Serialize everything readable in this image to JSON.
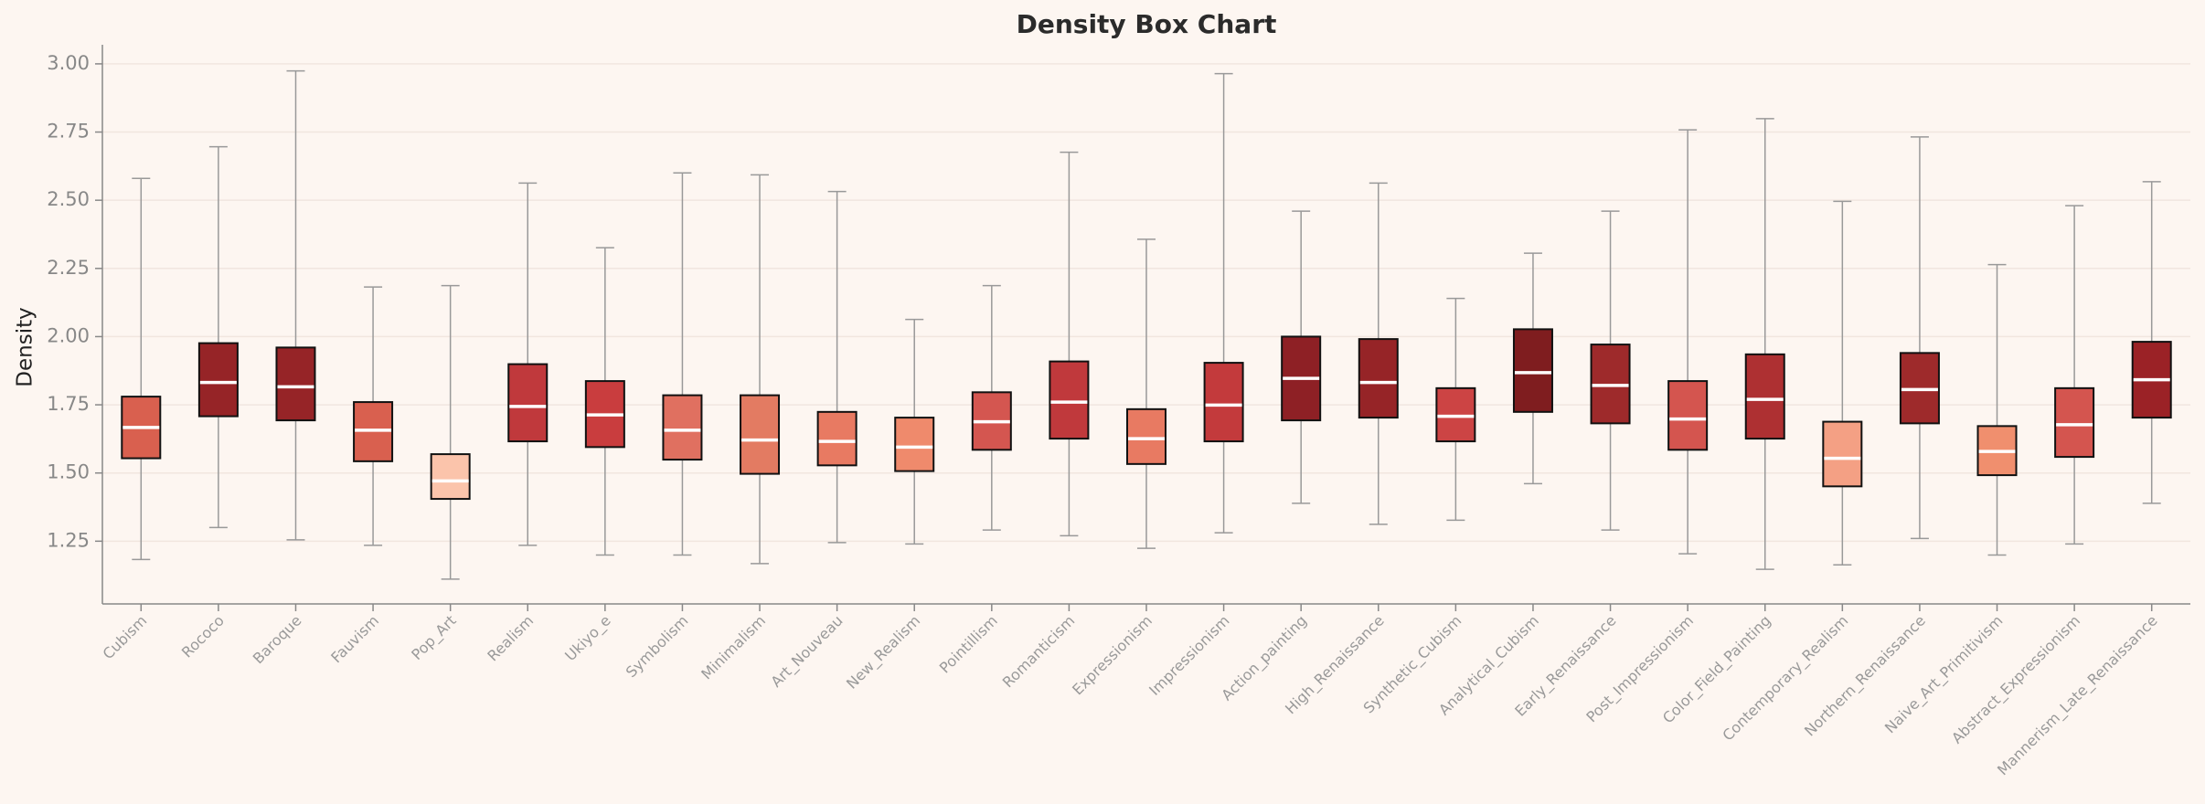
{
  "chart_data": {
    "type": "box",
    "title": "Density Box Chart",
    "y_label": "Density",
    "categories": [
      "Cubism",
      "Rococo",
      "Baroque",
      "Fauvism",
      "Pop_Art",
      "Realism",
      "Ukiyo_e",
      "Symbolism",
      "Minimalism",
      "Art_Nouveau",
      "New_Realism",
      "Pointillism",
      "Romanticism",
      "Expressionism",
      "Impressionism",
      "Action_painting",
      "High_Renaissance",
      "Synthetic_Cubism",
      "Analytical_Cubism",
      "Early_Renaissance",
      "Post_Impressionism",
      "Color_Field_Painting",
      "Contemporary_Realism",
      "Northern_Renaissance",
      "Naive_Art_Primitivism",
      "Abstract_Expressionism",
      "Mannerism_Late_Renaissance"
    ],
    "whisker_high": [
      2.58,
      2.696,
      2.974,
      2.182,
      2.187,
      2.563,
      2.326,
      2.6,
      2.593,
      2.532,
      2.063,
      2.187,
      2.676,
      2.357,
      2.964,
      2.46,
      2.563,
      2.14,
      2.306,
      2.46,
      2.758,
      2.799,
      2.496,
      2.732,
      2.264,
      2.48,
      2.568
    ],
    "q3": [
      1.78,
      1.976,
      1.96,
      1.76,
      1.569,
      1.899,
      1.837,
      1.785,
      1.785,
      1.724,
      1.703,
      1.796,
      1.909,
      1.734,
      1.904,
      2.0,
      1.991,
      1.811,
      2.027,
      1.971,
      1.837,
      1.935,
      1.688,
      1.94,
      1.672,
      1.811,
      1.981
    ],
    "median": [
      1.667,
      1.832,
      1.816,
      1.657,
      1.471,
      1.744,
      1.713,
      1.657,
      1.621,
      1.616,
      1.595,
      1.688,
      1.76,
      1.626,
      1.749,
      1.847,
      1.832,
      1.708,
      1.868,
      1.821,
      1.698,
      1.77,
      1.554,
      1.806,
      1.579,
      1.677,
      1.842
    ],
    "q1": [
      1.554,
      1.708,
      1.693,
      1.543,
      1.405,
      1.616,
      1.595,
      1.549,
      1.497,
      1.528,
      1.507,
      1.585,
      1.626,
      1.533,
      1.616,
      1.693,
      1.703,
      1.616,
      1.724,
      1.682,
      1.585,
      1.626,
      1.451,
      1.682,
      1.492,
      1.559,
      1.703
    ],
    "whisker_low": [
      1.183,
      1.3,
      1.255,
      1.235,
      1.111,
      1.235,
      1.199,
      1.199,
      1.168,
      1.245,
      1.24,
      1.291,
      1.27,
      1.224,
      1.281,
      1.389,
      1.312,
      1.327,
      1.461,
      1.291,
      1.204,
      1.147,
      1.163,
      1.26,
      1.199,
      1.24,
      1.389
    ],
    "colors": [
      "#d9604f",
      "#962427",
      "#962427",
      "#d9604f",
      "#fbc4ab",
      "#c0393c",
      "#c93d3e",
      "#e07060",
      "#e37b62",
      "#e87a62",
      "#ef8a6c",
      "#d45650",
      "#c0393c",
      "#e87a62",
      "#c33a3c",
      "#8e2025",
      "#962427",
      "#cc4444",
      "#7f1d1f",
      "#9e2a2b",
      "#d4554f",
      "#ae3032",
      "#f4a084",
      "#9e2a2b",
      "#f08f6e",
      "#d4554f",
      "#9b2226"
    ],
    "ylim": [
      1.02,
      3.07
    ],
    "yticks": [
      {
        "value": 1.25,
        "label": "1.25"
      },
      {
        "value": 1.5,
        "label": "1.50"
      },
      {
        "value": 1.75,
        "label": "1.75"
      },
      {
        "value": 2.0,
        "label": "2.00"
      },
      {
        "value": 2.25,
        "label": "2.25"
      },
      {
        "value": 2.5,
        "label": "2.50"
      },
      {
        "value": 2.75,
        "label": "2.75"
      },
      {
        "value": 3.0,
        "label": "3.00"
      }
    ],
    "grid": true
  }
}
